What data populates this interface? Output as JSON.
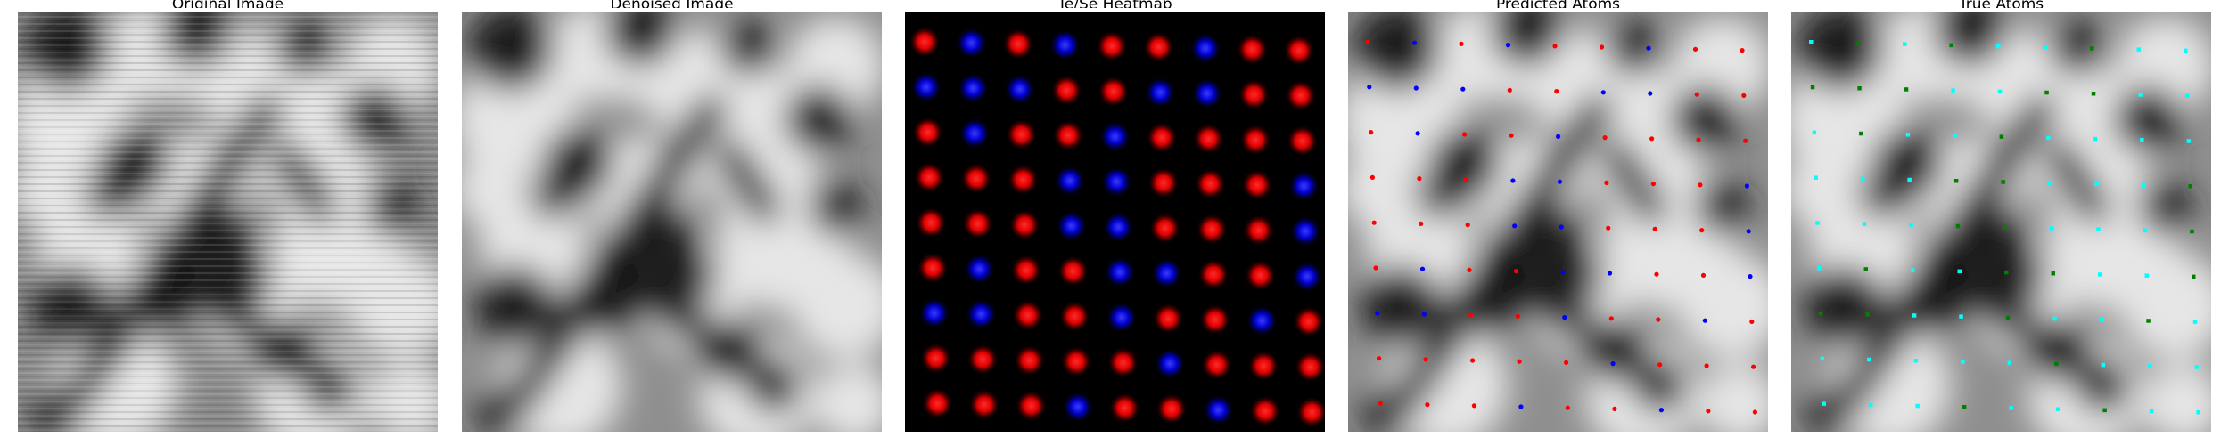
{
  "panels": [
    {
      "id": "original",
      "title": "Original Image",
      "kind": "stm-grayscale",
      "noise": "horizontal-scanlines"
    },
    {
      "id": "denoised",
      "title": "Denoised Image",
      "kind": "stm-grayscale",
      "noise": "none"
    },
    {
      "id": "heatmap",
      "title": "Te/Se Heatmap",
      "kind": "heatmap",
      "colors": {
        "background": "#000000",
        "te": "#ff0000",
        "se": "#0000ff"
      }
    },
    {
      "id": "predicted",
      "title": "Predicted Atoms",
      "kind": "atom-overlay",
      "colors": {
        "te": "#ff0000",
        "se": "#0000ff"
      }
    },
    {
      "id": "true",
      "title": "True Atoms",
      "kind": "atom-overlay",
      "colors": {
        "te": "#00ffff",
        "se": "#008000"
      }
    }
  ],
  "lattice": {
    "columns": 9,
    "rows": 9,
    "note_visible": false
  }
}
